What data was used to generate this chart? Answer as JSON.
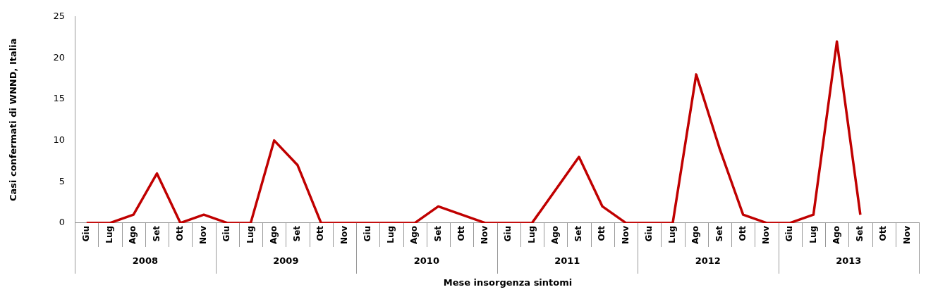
{
  "chart_data": {
    "type": "line",
    "xlabel": "Mese insorgenza sintomi",
    "ylabel": "Casi confermati di WNND, Italia",
    "categories": [
      "Giu",
      "Lug",
      "Ago",
      "Set",
      "Ott",
      "Nov",
      "Giu",
      "Lug",
      "Ago",
      "Set",
      "Ott",
      "Nov",
      "Giu",
      "Lug",
      "Ago",
      "Set",
      "Ott",
      "Nov",
      "Giu",
      "Lug",
      "Ago",
      "Set",
      "Ott",
      "Nov",
      "Giu",
      "Lug",
      "Ago",
      "Set",
      "Ott",
      "Nov",
      "Giu",
      "Lug",
      "Ago",
      "Set",
      "Ott",
      "Nov"
    ],
    "series": [
      {
        "color": "#c00000",
        "values": [
          0,
          0,
          1,
          6,
          0,
          1,
          0,
          0,
          10,
          7,
          0,
          0,
          0,
          0,
          0,
          2,
          1,
          0,
          0,
          0,
          4,
          8,
          2,
          0,
          0,
          0,
          18,
          9,
          1,
          0,
          0,
          1,
          22,
          1,
          null,
          null
        ]
      }
    ],
    "annotations": [
      "2008",
      "2009",
      "2010",
      "2011",
      "2012",
      "2013"
    ],
    "ylim": [
      0,
      25
    ],
    "yticks": [
      0,
      5,
      10,
      15,
      20,
      25
    ],
    "grid": false,
    "legend": false,
    "marker": "none",
    "line_style": "solid"
  }
}
